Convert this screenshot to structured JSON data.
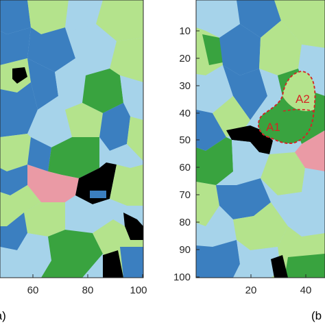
{
  "colors": {
    "light_blue": "#a6d3ea",
    "mid_blue": "#3b7fc0",
    "light_green": "#b4e38c",
    "dark_green": "#39a33f",
    "pink": "#ea9aa5",
    "black": "#000000",
    "annotation_red": "#d42424"
  },
  "panel_a": {
    "label": "(a)",
    "x_ticks": [
      "60",
      "80",
      "100"
    ]
  },
  "panel_b": {
    "label": "(b",
    "y_ticks": [
      "10",
      "20",
      "30",
      "40",
      "50",
      "60",
      "70",
      "80",
      "90",
      "100"
    ],
    "x_ticks": [
      "20",
      "40"
    ],
    "annotations": [
      "A2",
      "A1"
    ]
  }
}
